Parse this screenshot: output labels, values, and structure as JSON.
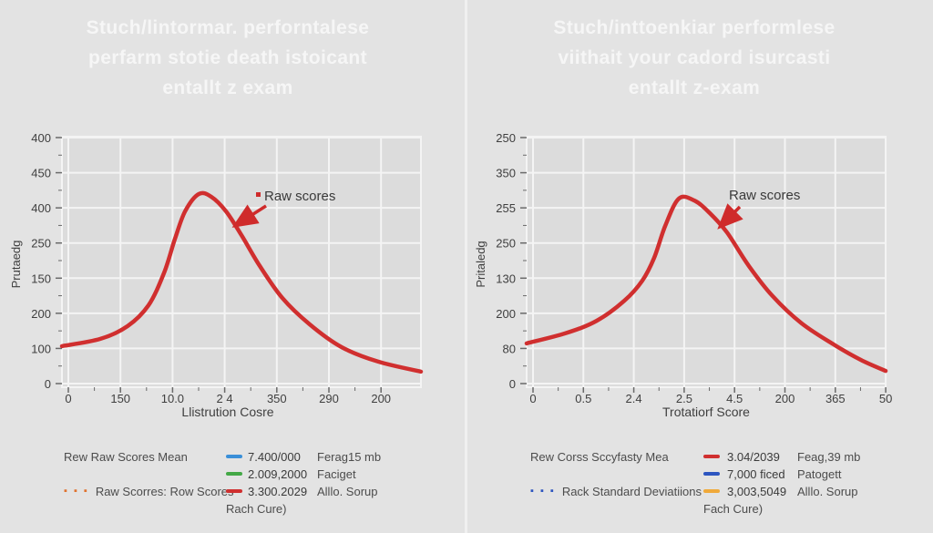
{
  "page": {
    "background": "#e3e3e3",
    "divider_color": "#f0f0f0",
    "title_color": "#f6f6f6"
  },
  "colors": {
    "plot_bg": "#dcdcdc",
    "grid_line": "#f4f4f4",
    "tick_mark": "#6a6a6a",
    "axis_text": "#3f3f3f",
    "curve_red": "#d02f2f",
    "arrow_red": "#cf2b2b",
    "annotation_text": "#3a3a3a",
    "swatch_blue": "#3a8fd8",
    "swatch_green": "#43a846",
    "swatch_red": "#d02f2f",
    "swatch_dark_blue": "#2d55c0",
    "swatch_orange": "#f0a93a",
    "dots_orange": "#e0722d",
    "dots_blue": "#2d55c0"
  },
  "left": {
    "title_lines": [
      "Stuch/lintormar. perforntalese",
      "perfarm stotie death istoicant",
      "entallt z exam"
    ],
    "chart": {
      "y_axis_label": "Prutaedg",
      "x_axis_label": "Llistrution Cosre",
      "y_ticks": [
        "400",
        "450",
        "400",
        "250",
        "150",
        "200",
        "100",
        "0"
      ],
      "x_ticks": [
        "0",
        "150",
        "10.0",
        "2 4",
        "350",
        "290",
        "200"
      ],
      "annotation": "Raw scores"
    },
    "legend": {
      "rows": [
        {
          "dots": "",
          "label": "Rew Raw Scores  Mean",
          "value": "7.400/000",
          "note": "Ferag15 mb"
        },
        {
          "dots": "",
          "label": "",
          "value": "2.009,2000",
          "note": "Faciget"
        },
        {
          "dots": "▪ ▪ ▪",
          "label": "Raw Scorres:  Row Scores",
          "value": "3.300.2029",
          "note": "Alllo. Sorup"
        }
      ],
      "footer": "Rach Cure)"
    }
  },
  "right": {
    "title_lines": [
      "Stuch/inttoenkiar performlese",
      "viithait your cadord isurcasti",
      "entallt z-exam"
    ],
    "chart": {
      "y_axis_label": "Pritaledg",
      "x_axis_label": "Trotatiorf Score",
      "y_ticks": [
        "250",
        "350",
        "255",
        "250",
        "130",
        "200",
        "80",
        "0"
      ],
      "x_ticks": [
        "0",
        "0.5",
        "2.4",
        "2.5",
        "4.5",
        "200",
        "365",
        "50"
      ],
      "annotation": "Raw scores"
    },
    "legend": {
      "rows": [
        {
          "dots": "",
          "label": "Rew Corss Sccyfasty Mea",
          "value": "3.04/2039",
          "note": "Feag,39 mb"
        },
        {
          "dots": "",
          "label": "",
          "value": "7,000 ficed",
          "note": "Patogett"
        },
        {
          "dots": "▪ ▪ ▪",
          "label": "Rack Standard Deviatiions",
          "value": "3,003,5049",
          "note": "Alllo. Sorup"
        }
      ],
      "footer": "Fach Cure)"
    }
  },
  "chart_data": [
    {
      "type": "line",
      "title": "Stuch/lintormar. perforntalese perfarm stotie death istoicant entallt z exam",
      "xlabel": "Llistrution Cosre",
      "ylabel": "Prutaedg",
      "x_tick_labels": [
        "0",
        "150",
        "10.0",
        "2 4",
        "350",
        "290",
        "200"
      ],
      "y_tick_labels": [
        "400",
        "450",
        "400",
        "250",
        "150",
        "200",
        "100",
        "0"
      ],
      "grid": true,
      "legend_position": "below",
      "annotation": "Raw scores",
      "series": [
        {
          "name": "Raw scores",
          "color": "#d02f2f",
          "shape": "bell curve, peak at ~38% of x-range, ~77% of plot height",
          "points_frac": [
            [
              0.0,
              0.164
            ],
            [
              0.107,
              0.193
            ],
            [
              0.183,
              0.244
            ],
            [
              0.241,
              0.327
            ],
            [
              0.284,
              0.455
            ],
            [
              0.315,
              0.593
            ],
            [
              0.343,
              0.702
            ],
            [
              0.381,
              0.771
            ],
            [
              0.416,
              0.76
            ],
            [
              0.457,
              0.702
            ],
            [
              0.5,
              0.607
            ],
            [
              0.551,
              0.484
            ],
            [
              0.614,
              0.356
            ],
            [
              0.69,
              0.251
            ],
            [
              0.779,
              0.16
            ],
            [
              0.881,
              0.102
            ],
            [
              1.0,
              0.062
            ]
          ]
        }
      ]
    },
    {
      "type": "line",
      "title": "Stuch/inttoenkiar performlese viithait your cadord isurcasti entallt z-exam",
      "xlabel": "Trotatiorf Score",
      "ylabel": "Pritaledg",
      "x_tick_labels": [
        "0",
        "0.5",
        "2.4",
        "2.5",
        "4.5",
        "200",
        "365",
        "50"
      ],
      "y_tick_labels": [
        "250",
        "350",
        "255",
        "250",
        "130",
        "200",
        "80",
        "0"
      ],
      "grid": true,
      "legend_position": "below",
      "annotation": "Raw scores",
      "series": [
        {
          "name": "Raw scores",
          "color": "#d02f2f",
          "shape": "bell curve, peak at ~42% of x-range, ~75% of plot height",
          "points_frac": [
            [
              0.0,
              0.175
            ],
            [
              0.107,
              0.215
            ],
            [
              0.195,
              0.265
            ],
            [
              0.272,
              0.345
            ],
            [
              0.322,
              0.425
            ],
            [
              0.355,
              0.516
            ],
            [
              0.386,
              0.644
            ],
            [
              0.424,
              0.753
            ],
            [
              0.467,
              0.745
            ],
            [
              0.508,
              0.698
            ],
            [
              0.558,
              0.618
            ],
            [
              0.619,
              0.484
            ],
            [
              0.685,
              0.364
            ],
            [
              0.766,
              0.255
            ],
            [
              0.855,
              0.171
            ],
            [
              0.931,
              0.109
            ],
            [
              1.0,
              0.065
            ]
          ]
        }
      ]
    }
  ]
}
